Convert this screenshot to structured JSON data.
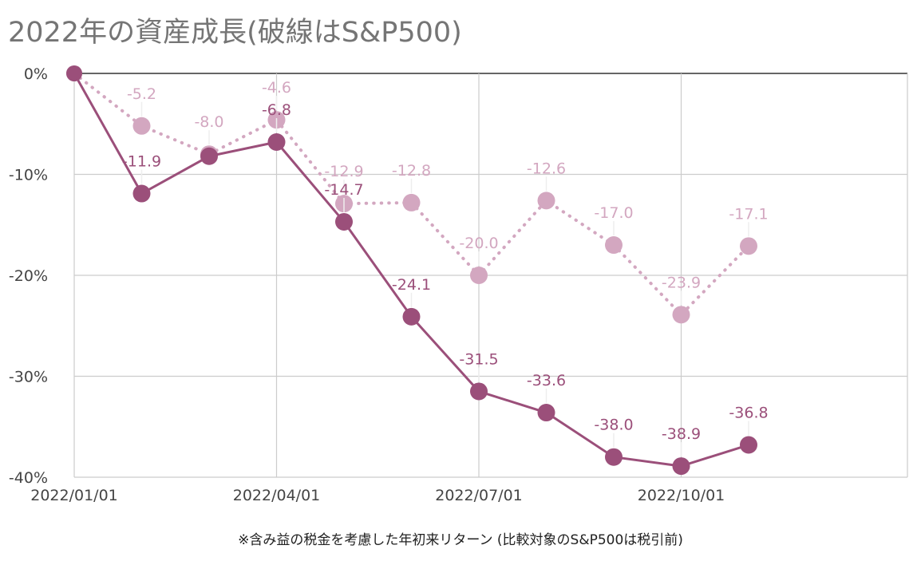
{
  "title": "2022年の資産成長(破線はS&P500)",
  "footnote": "※含み益の税金を考慮した年初来リターン (比較対象のS&P500は税引前)",
  "colors": {
    "portfolio": "#9b4f7a",
    "sp500": "#d3a7c0",
    "grid": "#cccccc",
    "zero_line": "#333333",
    "tick_text": "#444444"
  },
  "chart_data": {
    "type": "line",
    "title": "2022年の資産成長(破線はS&P500)",
    "xlabel": "",
    "ylabel": "",
    "ylim": [
      -40,
      0
    ],
    "yticks": [
      0,
      -10,
      -20,
      -30,
      -40
    ],
    "ytick_labels": [
      "0%",
      "-10%",
      "-20%",
      "-30%",
      "-40%"
    ],
    "xticks": [
      "2022/01/01",
      "2022/04/01",
      "2022/07/01",
      "2022/10/01"
    ],
    "x": [
      "2022/01/01",
      "2022/02/01",
      "2022/03/01",
      "2022/04/01",
      "2022/05/01",
      "2022/06/01",
      "2022/07/01",
      "2022/08/01",
      "2022/09/01",
      "2022/10/01",
      "2022/11/01"
    ],
    "grid": true,
    "legend": "none",
    "series": [
      {
        "style": "solid",
        "values": [
          0,
          -11.9,
          -8.2,
          -6.8,
          -14.7,
          -24.1,
          -31.5,
          -33.6,
          -38.0,
          -38.9,
          -36.8
        ],
        "labels": [
          "",
          "-11.9",
          "",
          "-6.8",
          "-14.7",
          "-24.1",
          "-31.5",
          "-33.6",
          "-38.0",
          "-38.9",
          "-36.8"
        ]
      },
      {
        "style": "dotted",
        "values": [
          0,
          -5.2,
          -8.0,
          -4.6,
          -12.9,
          -12.8,
          -20.0,
          -12.6,
          -17.0,
          -23.9,
          -17.1
        ],
        "labels": [
          "",
          "-5.2",
          "-8.0",
          "-4.6",
          "-12.9",
          "-12.8",
          "-20.0",
          "-12.6",
          "-17.0",
          "-23.9",
          "-17.1"
        ]
      }
    ]
  }
}
